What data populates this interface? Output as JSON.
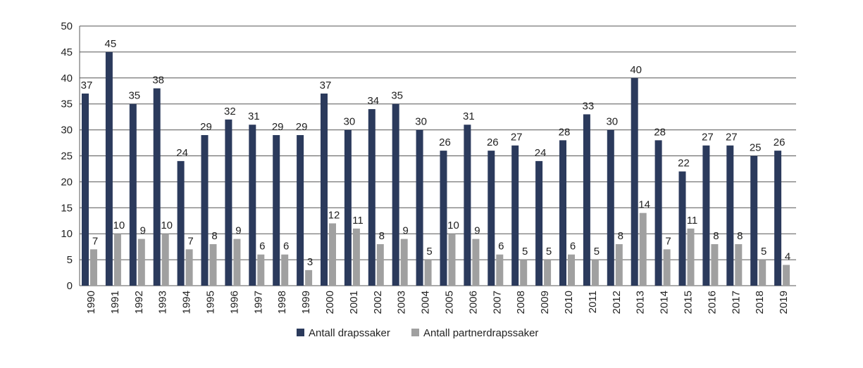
{
  "chart_data": {
    "type": "bar",
    "categories": [
      "1990",
      "1991",
      "1992",
      "1993",
      "1994",
      "1995",
      "1996",
      "1997",
      "1998",
      "1999",
      "2000",
      "2001",
      "2002",
      "2003",
      "2004",
      "2005",
      "2006",
      "2007",
      "2008",
      "2009",
      "2010",
      "2011",
      "2012",
      "2013",
      "2014",
      "2015",
      "2016",
      "2017",
      "2018",
      "2019"
    ],
    "series": [
      {
        "name": "Antall drapssaker",
        "color": "#2b3a5c",
        "values": [
          37,
          45,
          35,
          38,
          24,
          29,
          32,
          31,
          29,
          29,
          37,
          30,
          34,
          35,
          30,
          26,
          31,
          26,
          27,
          24,
          28,
          33,
          30,
          40,
          28,
          22,
          27,
          27,
          25,
          26
        ]
      },
      {
        "name": "Antall partnerdrapssaker",
        "color": "#a0a0a0",
        "values": [
          7,
          10,
          9,
          10,
          7,
          8,
          9,
          6,
          6,
          3,
          12,
          11,
          8,
          9,
          5,
          10,
          9,
          6,
          5,
          5,
          6,
          5,
          8,
          14,
          7,
          11,
          8,
          8,
          5,
          4
        ]
      }
    ],
    "yticks": [
      "0",
      "5",
      "10",
      "15",
      "20",
      "25",
      "30",
      "35",
      "40",
      "45",
      "50"
    ],
    "ylim": [
      0,
      50
    ],
    "grid": true,
    "legend_position": "bottom"
  }
}
